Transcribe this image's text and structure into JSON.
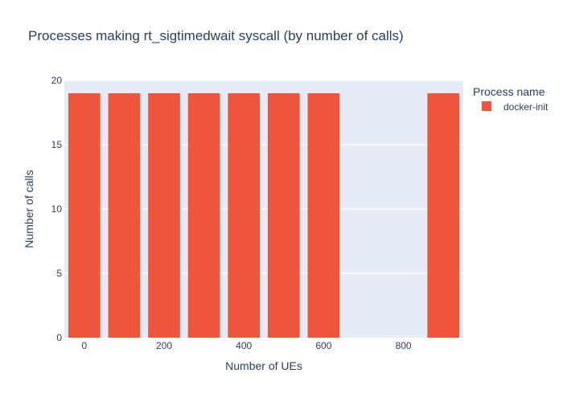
{
  "chart_data": {
    "type": "bar",
    "title": "Processes making rt_sigtimedwait syscall (by number of calls)",
    "xlabel": "Number of UEs",
    "ylabel": "Number of calls",
    "x": [
      0,
      100,
      200,
      300,
      400,
      500,
      600,
      900
    ],
    "series": [
      {
        "name": "docker-init",
        "color": "#ef553b",
        "values": [
          19,
          19,
          19,
          19,
          19,
          19,
          19,
          19
        ]
      }
    ],
    "xlim": [
      -50,
      950
    ],
    "ylim": [
      0,
      20
    ],
    "x_ticks": [
      0,
      200,
      400,
      600,
      800
    ],
    "y_ticks": [
      0,
      5,
      10,
      15,
      20
    ],
    "legend_title": "Process name",
    "legend_position": "top-right",
    "grid": true,
    "plot_background": "#e5ecf6"
  }
}
